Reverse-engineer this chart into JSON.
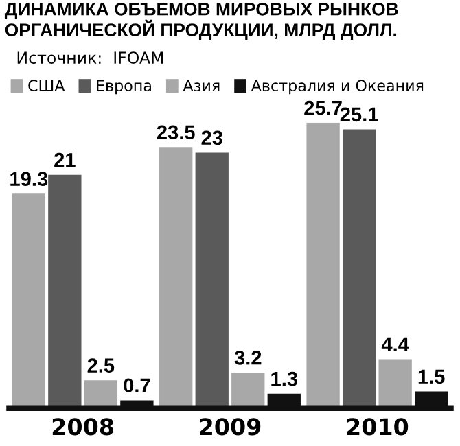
{
  "chart_data": {
    "type": "bar",
    "title": "ДИНАМИКА ОБЪЕМОВ МИРОВЫХ РЫНКОВ\nОРГАНИЧЕСКОЙ ПРОДУКЦИИ, МЛРД ДОЛЛ.",
    "annotations": [
      "Источник:  IFOAM"
    ],
    "categories": [
      "2008",
      "2009",
      "2010"
    ],
    "series": [
      {
        "name": "США",
        "color": "#a8a8a8",
        "values": [
          19.3,
          23.5,
          25.7
        ]
      },
      {
        "name": "Европа",
        "color": "#5a5a5a",
        "values": [
          21,
          23,
          25.1
        ]
      },
      {
        "name": "Азия",
        "color": "#a8a8a8",
        "values": [
          2.5,
          3.2,
          4.4
        ]
      },
      {
        "name": "Австралия и Океания",
        "color": "#111111",
        "values": [
          0.7,
          1.3,
          1.5
        ]
      }
    ],
    "ylim": [
      0,
      25.7
    ],
    "data_labels": true,
    "legend": "top left",
    "grid": false,
    "tick_labels": "x"
  }
}
